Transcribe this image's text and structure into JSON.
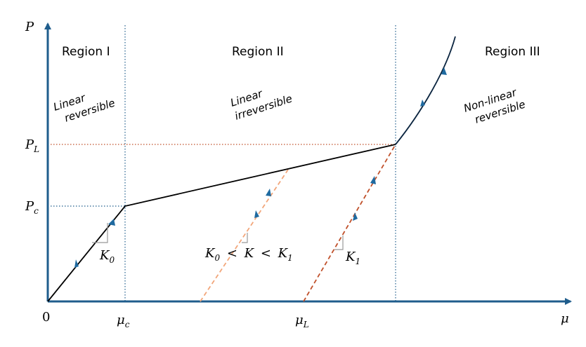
{
  "colors": {
    "axis": "#1f5d8c",
    "curve": "#0b2540",
    "dotted_blue": "#1f5d8c",
    "dotted_red": "#c0502a",
    "dashed_light": "#f2a67a",
    "dashed_dark": "#c0502a",
    "slope_mark": "#999999",
    "arrow_blue": "#1f6aa0"
  },
  "axes": {
    "y_symbol": "P",
    "x_symbol": "μ",
    "origin": "0",
    "y_ticks": [
      {
        "sym": "P",
        "sub": "L"
      },
      {
        "sym": "P",
        "sub": "c"
      }
    ],
    "x_ticks": [
      {
        "sym": "μ",
        "sub": "c"
      },
      {
        "sym": "μ",
        "sub": "L"
      }
    ]
  },
  "regions": [
    {
      "title": "Region I",
      "note_lines": [
        "Linear",
        "reversible"
      ]
    },
    {
      "title": "Region II",
      "note_lines": [
        "Linear",
        "irreversible"
      ]
    },
    {
      "title": "Region III",
      "note_lines": [
        "Non-linear",
        "reversible"
      ]
    }
  ],
  "slopes": {
    "k0": {
      "sym": "K",
      "sub": "0"
    },
    "mid": {
      "k0_sym": "K",
      "k0_sub": "0",
      "lt1": "<",
      "k_sym": "K",
      "lt2": "<",
      "k1_sym": "K",
      "k1_sub": "1"
    },
    "k1": {
      "sym": "K",
      "sub": "1"
    }
  }
}
